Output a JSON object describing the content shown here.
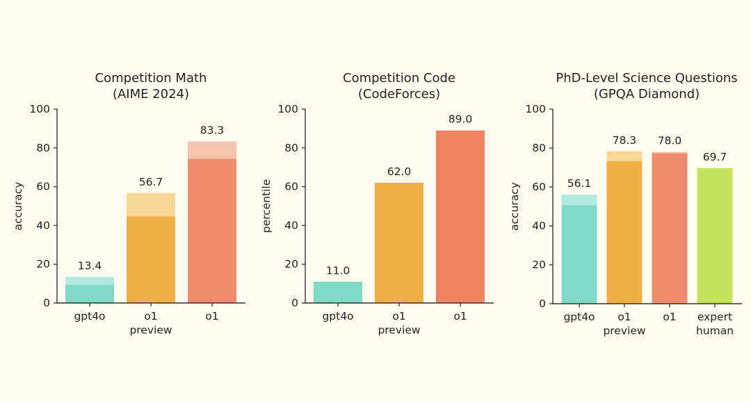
{
  "colors": {
    "background": "#FFFDF0",
    "text": "#222222",
    "axis": "#333333",
    "gpt4o": "#7DD9C3",
    "gpt4o_light": "#B2EBDD",
    "o1_preview": "#F1AE47",
    "o1_preview_light": "#F7D796",
    "o1": "#EF8C6E",
    "o1_light": "#F5C4B0",
    "o1_code": "#EE845F",
    "expert_human": "#C4E25B"
  },
  "chart_data": [
    {
      "type": "bar",
      "title": [
        "Competition Math",
        "(AIME 2024)"
      ],
      "xlabel": "",
      "ylabel": "accuracy",
      "ylim": [
        0,
        100
      ],
      "yticks": [
        "0",
        "20",
        "40",
        "60",
        "80",
        "100"
      ],
      "grid": false,
      "categories": [
        [
          "gpt4o"
        ],
        [
          "o1",
          "preview"
        ],
        [
          "o1"
        ]
      ],
      "values": [
        13.4,
        56.7,
        83.3
      ],
      "value_labels": [
        "13.4",
        "56.7",
        "83.3"
      ],
      "base_values": [
        9.3,
        44.6,
        74.4
      ],
      "color_keys": [
        "gpt4o",
        "o1_preview",
        "o1"
      ]
    },
    {
      "type": "bar",
      "title": [
        "Competition Code",
        "(CodeForces)"
      ],
      "xlabel": "",
      "ylabel": "percentile",
      "ylim": [
        0,
        100
      ],
      "yticks": [
        "0",
        "20",
        "40",
        "60",
        "80",
        "100"
      ],
      "grid": false,
      "categories": [
        [
          "gpt4o"
        ],
        [
          "o1",
          "preview"
        ],
        [
          "o1"
        ]
      ],
      "values": [
        11.0,
        62.0,
        89.0
      ],
      "value_labels": [
        "11.0",
        "62.0",
        "89.0"
      ],
      "base_values": [
        11.0,
        62.0,
        89.0
      ],
      "color_keys": [
        "gpt4o",
        "o1_preview",
        "o1_code"
      ]
    },
    {
      "type": "bar",
      "title": [
        "PhD-Level Science Questions",
        "(GPQA Diamond)"
      ],
      "xlabel": "",
      "ylabel": "accuracy",
      "ylim": [
        0,
        100
      ],
      "yticks": [
        "0",
        "20",
        "40",
        "60",
        "80",
        "100"
      ],
      "grid": false,
      "categories": [
        [
          "gpt4o"
        ],
        [
          "o1",
          "preview"
        ],
        [
          "o1"
        ],
        [
          "expert",
          "human"
        ]
      ],
      "values": [
        56.1,
        78.3,
        78.0,
        69.7
      ],
      "value_labels": [
        "56.1",
        "78.3",
        "78.0",
        "69.7"
      ],
      "base_values": [
        50.6,
        73.3,
        77.3,
        69.7
      ],
      "color_keys": [
        "gpt4o",
        "o1_preview",
        "o1",
        "expert_human"
      ]
    }
  ]
}
